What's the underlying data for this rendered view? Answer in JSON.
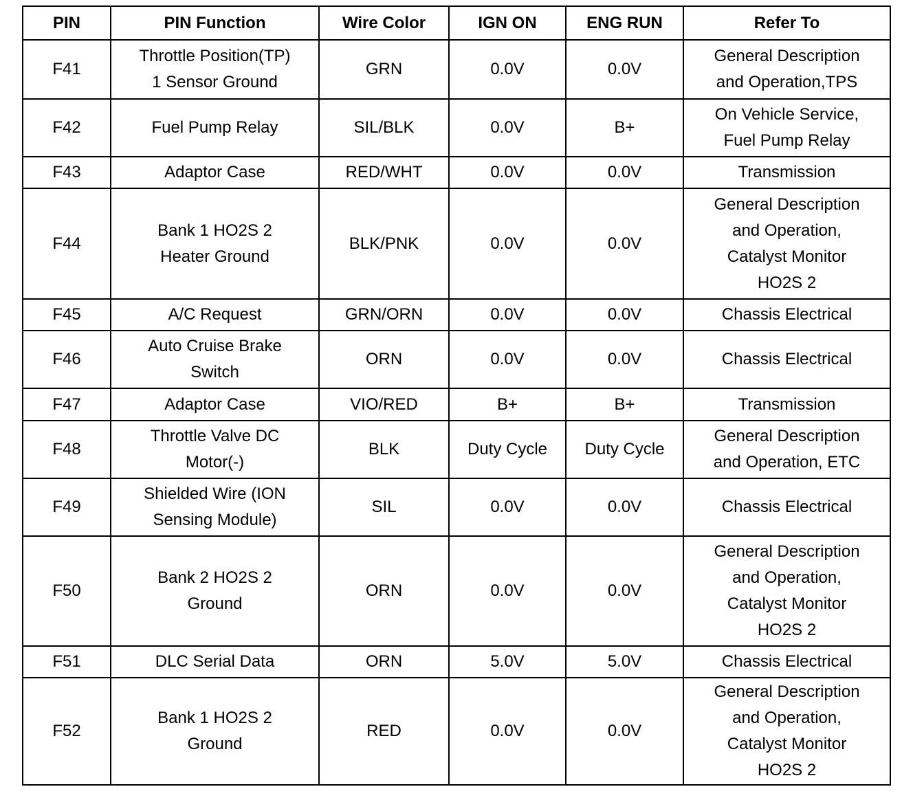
{
  "table": {
    "headers": [
      "PIN",
      "PIN Function",
      "Wire Color",
      "IGN ON",
      "ENG RUN",
      "Refer To"
    ],
    "rows": [
      [
        "F41",
        [
          "Throttle Position(TP)",
          "1 Sensor Ground"
        ],
        "GRN",
        "0.0V",
        "0.0V",
        [
          "General Description",
          "and Operation,TPS"
        ]
      ],
      [
        "F42",
        "Fuel Pump Relay",
        "SIL/BLK",
        "0.0V",
        "B+",
        [
          "On Vehicle Service,",
          "Fuel Pump Relay"
        ]
      ],
      [
        "F43",
        "Adaptor Case",
        "RED/WHT",
        "0.0V",
        "0.0V",
        "Transmission"
      ],
      [
        "F44",
        [
          "Bank 1 HO2S 2",
          "Heater Ground"
        ],
        "BLK/PNK",
        "0.0V",
        "0.0V",
        [
          "General Description",
          "and Operation,",
          "Catalyst Monitor",
          "HO2S 2"
        ]
      ],
      [
        "F45",
        "A/C Request",
        "GRN/ORN",
        "0.0V",
        "0.0V",
        "Chassis Electrical"
      ],
      [
        "F46",
        [
          "Auto Cruise Brake",
          "Switch"
        ],
        "ORN",
        "0.0V",
        "0.0V",
        "Chassis Electrical"
      ],
      [
        "F47",
        "Adaptor Case",
        "VIO/RED",
        "B+",
        "B+",
        "Transmission"
      ],
      [
        "F48",
        [
          "Throttle Valve DC",
          "Motor(-)"
        ],
        "BLK",
        "Duty Cycle",
        "Duty Cycle",
        [
          "General Description",
          "and Operation, ETC"
        ]
      ],
      [
        "F49",
        [
          "Shielded Wire (ION",
          "Sensing Module)"
        ],
        "SIL",
        "0.0V",
        "0.0V",
        "Chassis Electrical"
      ],
      [
        "F50",
        [
          "Bank 2 HO2S 2",
          "Ground"
        ],
        "ORN",
        "0.0V",
        "0.0V",
        [
          "General Description",
          "and Operation,",
          "Catalyst Monitor",
          "HO2S 2"
        ]
      ],
      [
        "F51",
        "DLC Serial Data",
        "ORN",
        "5.0V",
        "5.0V",
        "Chassis Electrical"
      ],
      [
        "F52",
        [
          "Bank 1 HO2S 2",
          "Ground"
        ],
        "RED",
        "0.0V",
        "0.0V",
        [
          "General Description",
          "and Operation,",
          "Catalyst Monitor",
          "HO2S 2"
        ]
      ]
    ]
  }
}
